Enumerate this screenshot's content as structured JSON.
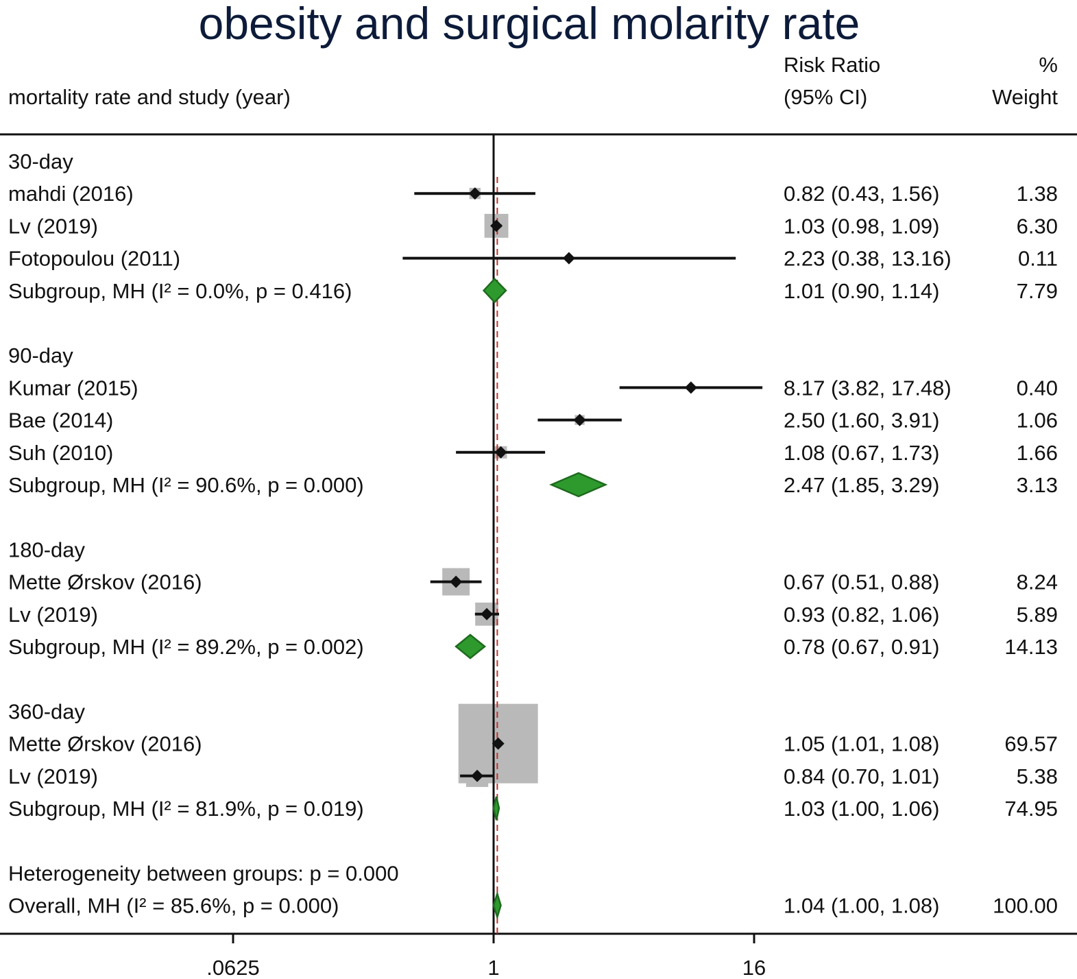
{
  "colors": {
    "title": "#0d1b3a",
    "text": "#111111",
    "marker": "#111111",
    "weight_box": "#b9b9b9",
    "diamond_fill": "#2e9a2e",
    "diamond_stroke": "#1e6b1e",
    "null_line": "#111111",
    "overall_line": "#c0302a"
  },
  "chart_data": {
    "type": "forest",
    "title": "obesity and surgical molarity rate",
    "header": {
      "label_col": "mortality rate and study (year)",
      "rr_col_line1": "Risk Ratio",
      "rr_col_line2": "(95% CI)",
      "w_col_line1": "%",
      "w_col_line2": "Weight"
    },
    "x_scale": "log2",
    "xlim": [
      0.0078125,
      128
    ],
    "x_ticks": [
      {
        "value": 0.0625,
        "label": ".0625"
      },
      {
        "value": 1,
        "label": "1"
      },
      {
        "value": 16,
        "label": "16"
      }
    ],
    "null_value": 1,
    "overall_effect": 1.04,
    "rows": [
      {
        "kind": "group",
        "label": "30-day"
      },
      {
        "kind": "study",
        "label": "mahdi  (2016)",
        "rr": 0.82,
        "lo": 0.43,
        "hi": 1.56,
        "ci_text": "0.82 (0.43, 1.56)",
        "weight": 1.38,
        "weight_text": "1.38"
      },
      {
        "kind": "study",
        "label": "Lv  (2019)",
        "rr": 1.03,
        "lo": 0.98,
        "hi": 1.09,
        "ci_text": "1.03 (0.98, 1.09)",
        "weight": 6.3,
        "weight_text": "6.30"
      },
      {
        "kind": "study",
        "label": "Fotopoulou  (2011)",
        "rr": 2.23,
        "lo": 0.38,
        "hi": 13.16,
        "ci_text": "2.23 (0.38, 13.16)",
        "weight": 0.11,
        "weight_text": "0.11"
      },
      {
        "kind": "subgroup",
        "label": "Subgroup, MH (I² = 0.0%, p = 0.416)",
        "rr": 1.01,
        "lo": 0.9,
        "hi": 1.14,
        "ci_text": "1.01 (0.90, 1.14)",
        "weight": 7.79,
        "weight_text": "7.79"
      },
      {
        "kind": "blank"
      },
      {
        "kind": "group",
        "label": "90-day"
      },
      {
        "kind": "study",
        "label": "Kumar  (2015)",
        "rr": 8.17,
        "lo": 3.82,
        "hi": 17.48,
        "ci_text": "8.17 (3.82, 17.48)",
        "weight": 0.4,
        "weight_text": "0.40"
      },
      {
        "kind": "study",
        "label": "Bae  (2014)",
        "rr": 2.5,
        "lo": 1.6,
        "hi": 3.91,
        "ci_text": "2.50 (1.60, 3.91)",
        "weight": 1.06,
        "weight_text": "1.06"
      },
      {
        "kind": "study",
        "label": "Suh  (2010)",
        "rr": 1.08,
        "lo": 0.67,
        "hi": 1.73,
        "ci_text": "1.08 (0.67, 1.73)",
        "weight": 1.66,
        "weight_text": "1.66"
      },
      {
        "kind": "subgroup",
        "label": "Subgroup, MH (I² = 90.6%, p = 0.000)",
        "rr": 2.47,
        "lo": 1.85,
        "hi": 3.29,
        "ci_text": "2.47 (1.85, 3.29)",
        "weight": 3.13,
        "weight_text": "3.13"
      },
      {
        "kind": "blank"
      },
      {
        "kind": "group",
        "label": "180-day"
      },
      {
        "kind": "study",
        "label": "Mette Ørskov  (2016)",
        "rr": 0.67,
        "lo": 0.51,
        "hi": 0.88,
        "ci_text": "0.67 (0.51, 0.88)",
        "weight": 8.24,
        "weight_text": "8.24"
      },
      {
        "kind": "study",
        "label": "Lv (2019)",
        "rr": 0.93,
        "lo": 0.82,
        "hi": 1.06,
        "ci_text": "0.93 (0.82, 1.06)",
        "weight": 5.89,
        "weight_text": "5.89"
      },
      {
        "kind": "subgroup",
        "label": "Subgroup, MH (I² = 89.2%, p = 0.002)",
        "rr": 0.78,
        "lo": 0.67,
        "hi": 0.91,
        "ci_text": "0.78 (0.67, 0.91)",
        "weight": 14.13,
        "weight_text": "14.13"
      },
      {
        "kind": "blank"
      },
      {
        "kind": "group",
        "label": "360-day"
      },
      {
        "kind": "study",
        "label": "Mette Ørskov  (2016)",
        "rr": 1.05,
        "lo": 1.01,
        "hi": 1.08,
        "ci_text": "1.05 (1.01, 1.08)",
        "weight": 69.57,
        "weight_text": "69.57"
      },
      {
        "kind": "study",
        "label": "Lv  (2019)",
        "rr": 0.84,
        "lo": 0.7,
        "hi": 1.01,
        "ci_text": "0.84 (0.70, 1.01)",
        "weight": 5.38,
        "weight_text": "5.38"
      },
      {
        "kind": "subgroup",
        "label": "Subgroup, MH (I² = 81.9%, p = 0.019)",
        "rr": 1.03,
        "lo": 1.0,
        "hi": 1.06,
        "ci_text": "1.03 (1.00, 1.06)",
        "weight": 74.95,
        "weight_text": "74.95"
      },
      {
        "kind": "blank"
      },
      {
        "kind": "note",
        "label": "Heterogeneity between groups: p = 0.000"
      },
      {
        "kind": "overall",
        "label": "Overall, MH (I² = 85.6%, p = 0.000)",
        "rr": 1.04,
        "lo": 1.0,
        "hi": 1.08,
        "ci_text": "1.04 (1.00, 1.08)",
        "weight": 100.0,
        "weight_text": "100.00"
      }
    ]
  }
}
